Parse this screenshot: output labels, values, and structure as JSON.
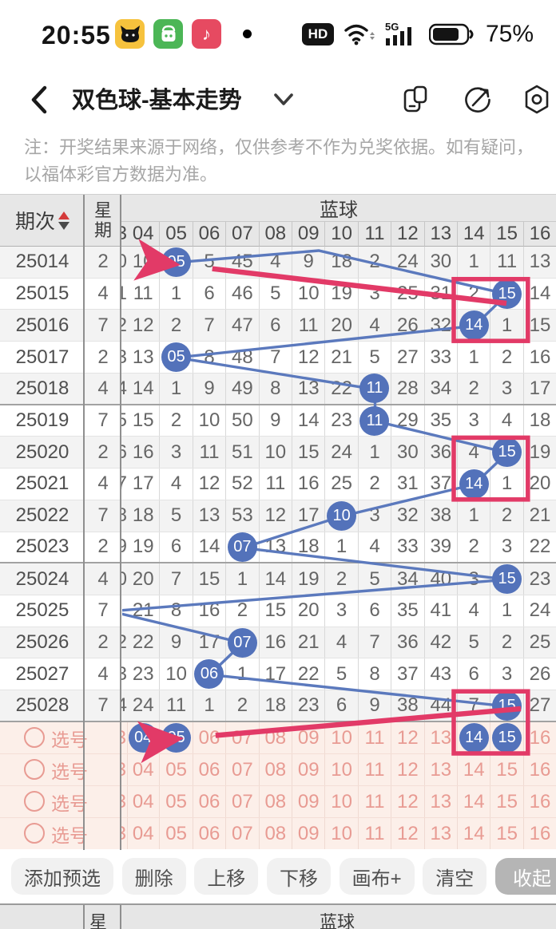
{
  "status_bar": {
    "time": "20:55",
    "hd_label": "HD",
    "network_label": "5G",
    "battery_pct": "75%",
    "app_icons": [
      "tmall-cat",
      "shop-bag",
      "music-note"
    ]
  },
  "nav": {
    "title": "双色球-基本走势",
    "icons": [
      "floating-window",
      "open-compass",
      "seal-settings"
    ]
  },
  "note": {
    "text": "注：开奖结果来源于网络，仅供参考不作为兑奖依据。如有疑问，以福体彩官方数据为准。"
  },
  "table": {
    "period_header": "期次",
    "week_header_top": "星",
    "week_header_bottom": "期",
    "ball_header": "蓝球",
    "edge_header": "3",
    "columns": [
      "04",
      "05",
      "06",
      "07",
      "08",
      "09",
      "10",
      "11",
      "12",
      "13",
      "14",
      "15",
      "16"
    ],
    "rows": [
      {
        "period": "25014",
        "week": "2",
        "edge": "0",
        "ball": "05",
        "values": [
          "10",
          "B",
          "5",
          "45",
          "4",
          "9",
          "18",
          "2",
          "24",
          "30",
          "1",
          "11",
          "13"
        ]
      },
      {
        "period": "25015",
        "week": "4",
        "edge": "1",
        "ball": "15",
        "values": [
          "11",
          "1",
          "6",
          "46",
          "5",
          "10",
          "19",
          "3",
          "25",
          "31",
          "2",
          "B",
          "14"
        ]
      },
      {
        "period": "25016",
        "week": "7",
        "edge": "2",
        "ball": "14",
        "values": [
          "12",
          "2",
          "7",
          "47",
          "6",
          "11",
          "20",
          "4",
          "26",
          "32",
          "B",
          "1",
          "15"
        ]
      },
      {
        "period": "25017",
        "week": "2",
        "edge": "3",
        "ball": "05",
        "values": [
          "13",
          "B",
          "8",
          "48",
          "7",
          "12",
          "21",
          "5",
          "27",
          "33",
          "1",
          "2",
          "16"
        ]
      },
      {
        "period": "25018",
        "week": "4",
        "edge": "4",
        "ball": "11",
        "values": [
          "14",
          "1",
          "9",
          "49",
          "8",
          "13",
          "22",
          "B",
          "28",
          "34",
          "2",
          "3",
          "17"
        ]
      },
      {
        "period": "25019",
        "week": "7",
        "edge": "5",
        "ball": "11",
        "values": [
          "15",
          "2",
          "10",
          "50",
          "9",
          "14",
          "23",
          "B",
          "29",
          "35",
          "3",
          "4",
          "18"
        ]
      },
      {
        "period": "25020",
        "week": "2",
        "edge": "6",
        "ball": "15",
        "values": [
          "16",
          "3",
          "11",
          "51",
          "10",
          "15",
          "24",
          "1",
          "30",
          "36",
          "4",
          "B",
          "19"
        ]
      },
      {
        "period": "25021",
        "week": "4",
        "edge": "7",
        "ball": "14",
        "values": [
          "17",
          "4",
          "12",
          "52",
          "11",
          "16",
          "25",
          "2",
          "31",
          "37",
          "B",
          "1",
          "20"
        ]
      },
      {
        "period": "25022",
        "week": "7",
        "edge": "8",
        "ball": "10",
        "values": [
          "18",
          "5",
          "13",
          "53",
          "12",
          "17",
          "B",
          "3",
          "32",
          "38",
          "1",
          "2",
          "21"
        ]
      },
      {
        "period": "25023",
        "week": "2",
        "edge": "9",
        "ball": "07",
        "values": [
          "19",
          "6",
          "14",
          "B",
          "13",
          "18",
          "1",
          "4",
          "33",
          "39",
          "2",
          "3",
          "22"
        ]
      },
      {
        "period": "25024",
        "week": "4",
        "edge": "0",
        "ball": "15",
        "values": [
          "20",
          "7",
          "15",
          "1",
          "14",
          "19",
          "2",
          "5",
          "34",
          "40",
          "3",
          "B",
          "23"
        ]
      },
      {
        "period": "25025",
        "week": "7",
        "edge": "",
        "ball": "03-hidden",
        "values": [
          "21",
          "8",
          "16",
          "2",
          "15",
          "20",
          "3",
          "6",
          "35",
          "41",
          "4",
          "1",
          "24"
        ]
      },
      {
        "period": "25026",
        "week": "2",
        "edge": "2",
        "ball": "07",
        "values": [
          "22",
          "9",
          "17",
          "B",
          "16",
          "21",
          "4",
          "7",
          "36",
          "42",
          "5",
          "2",
          "25"
        ]
      },
      {
        "period": "25027",
        "week": "4",
        "edge": "3",
        "ball": "06",
        "values": [
          "23",
          "10",
          "B",
          "1",
          "17",
          "22",
          "5",
          "8",
          "37",
          "43",
          "6",
          "3",
          "26"
        ]
      },
      {
        "period": "25028",
        "week": "7",
        "edge": "4",
        "ball": "15",
        "values": [
          "24",
          "11",
          "1",
          "2",
          "18",
          "23",
          "6",
          "9",
          "38",
          "44",
          "7",
          "B",
          "27"
        ]
      }
    ],
    "separator_after": [
      "25018",
      "25023",
      "25028"
    ],
    "selection_rows": [
      {
        "label": "选号",
        "edge": "3",
        "selected": [
          "04",
          "05",
          "14",
          "15"
        ]
      },
      {
        "label": "选号",
        "edge": "3",
        "selected": []
      },
      {
        "label": "选号",
        "edge": "3",
        "selected": []
      },
      {
        "label": "选号",
        "edge": "3",
        "selected": []
      }
    ]
  },
  "annotations": {
    "trend_line": [
      "25014:05",
      "apex",
      "25015:15",
      "25016:14",
      "25017:05",
      "25018:11",
      "25019:11",
      "25020:15",
      "25021:14",
      "25022:10",
      "25023:07",
      "25024:15",
      "25025:03",
      "25026:07",
      "25027:06",
      "25028:15"
    ],
    "hidden_balls": [
      "25025:03"
    ],
    "boxes": [
      {
        "rows": [
          "25015",
          "25016"
        ],
        "cols": [
          "14",
          "15"
        ]
      },
      {
        "rows": [
          "25020",
          "25021"
        ],
        "cols": [
          "14",
          "15"
        ]
      },
      {
        "rows": [
          "25028",
          "sel0"
        ],
        "cols": [
          "14",
          "15"
        ]
      }
    ],
    "arrows": [
      {
        "from": "box-25015-14",
        "to": "25014:05"
      },
      {
        "from": "box-25028-14",
        "to": "sel0:05"
      }
    ]
  },
  "toolbar": {
    "buttons": [
      "添加预选",
      "删除",
      "上移",
      "下移",
      "画布+",
      "清空",
      "收起"
    ]
  },
  "bottom_header": {
    "week": "星",
    "ball": "蓝球"
  },
  "colors": {
    "ball_blue": "#5372ba",
    "line_blue": "#5b79bd",
    "marker_pink": "#e23a67",
    "selection_bg": "#fcefe9",
    "selection_text": "#e89b93",
    "header_bg": "#e7e7e7",
    "zebra": "#f3f3f3"
  }
}
